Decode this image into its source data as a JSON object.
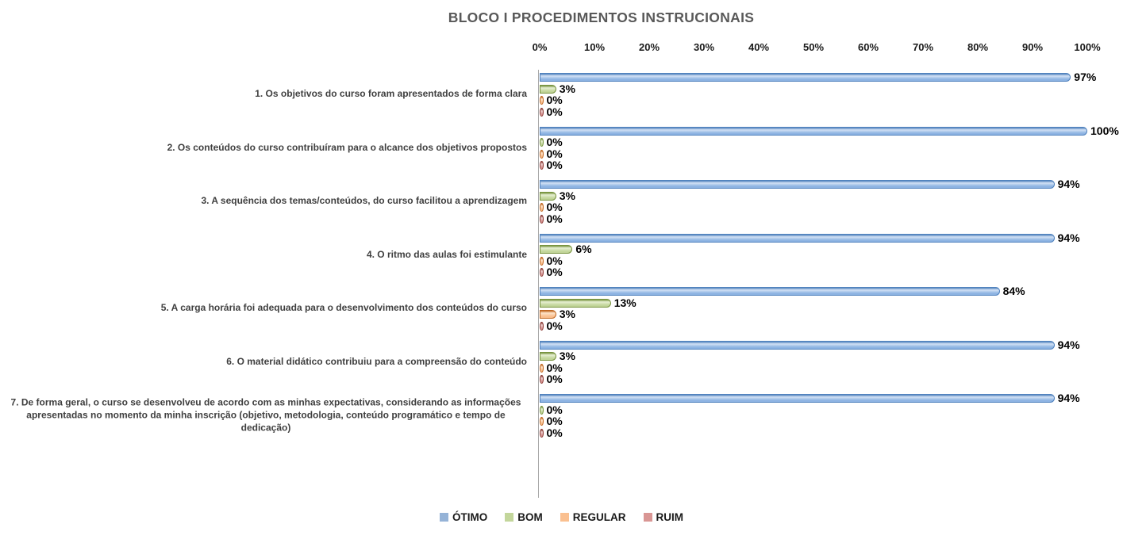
{
  "title": "BLOCO I PROCEDIMENTOS INSTRUCIONAIS",
  "chart_data": {
    "type": "bar",
    "orientation": "horizontal",
    "title": "BLOCO I PROCEDIMENTOS INSTRUCIONAIS",
    "xlim": [
      0,
      100
    ],
    "x_ticks": [
      "0%",
      "10%",
      "20%",
      "30%",
      "40%",
      "50%",
      "60%",
      "70%",
      "80%",
      "90%",
      "100%"
    ],
    "value_suffix": "%",
    "axis_position": "top",
    "legend_position": "bottom",
    "grid": false,
    "categories": [
      "1. Os objetivos do curso foram apresentados de forma clara",
      "2. Os conteúdos do curso contribuíram para o alcance dos objetivos propostos",
      "3. A sequência dos temas/conteúdos, do curso facilitou a aprendizagem",
      "4. O ritmo das aulas foi estimulante",
      "5. A carga horária foi adequada para o desenvolvimento dos conteúdos do curso",
      "6. O material didático contribuiu para a compreensão do conteúdo",
      "7. De forma geral, o curso se desenvolveu de acordo com as minhas expectativas, considerando as informações apresentadas no momento da minha inscrição (objetivo, metodologia, conteúdo programático e tempo de dedicação)"
    ],
    "series": [
      {
        "name": "ÓTIMO",
        "values": [
          97,
          100,
          94,
          94,
          84,
          94,
          94
        ],
        "color_fill": "#8eb4e3",
        "color_light": "#d2e1f4",
        "color_border": "#4f81bd",
        "color_legend": "#95b3d7"
      },
      {
        "name": "BOM",
        "values": [
          3,
          0,
          3,
          6,
          13,
          3,
          0
        ],
        "color_fill": "#c3d69b",
        "color_light": "#e6efd2",
        "color_border": "#76923c",
        "color_legend": "#c3d69b"
      },
      {
        "name": "REGULAR",
        "values": [
          0,
          0,
          0,
          0,
          3,
          0,
          0
        ],
        "color_fill": "#fac090",
        "color_light": "#fde3c9",
        "color_border": "#c0661f",
        "color_legend": "#fac090"
      },
      {
        "name": "RUIM",
        "values": [
          0,
          0,
          0,
          0,
          0,
          0,
          0
        ],
        "color_fill": "#d99694",
        "color_light": "#eccfce",
        "color_border": "#8c3a34",
        "color_legend": "#d99694"
      }
    ]
  },
  "colors": {
    "title_text": "#595959",
    "axis_line": "#a8a8a8",
    "tick_text": "#1a1a1a",
    "category_text": "#3f3f3f",
    "value_text": "#000000",
    "background": "#ffffff"
  }
}
